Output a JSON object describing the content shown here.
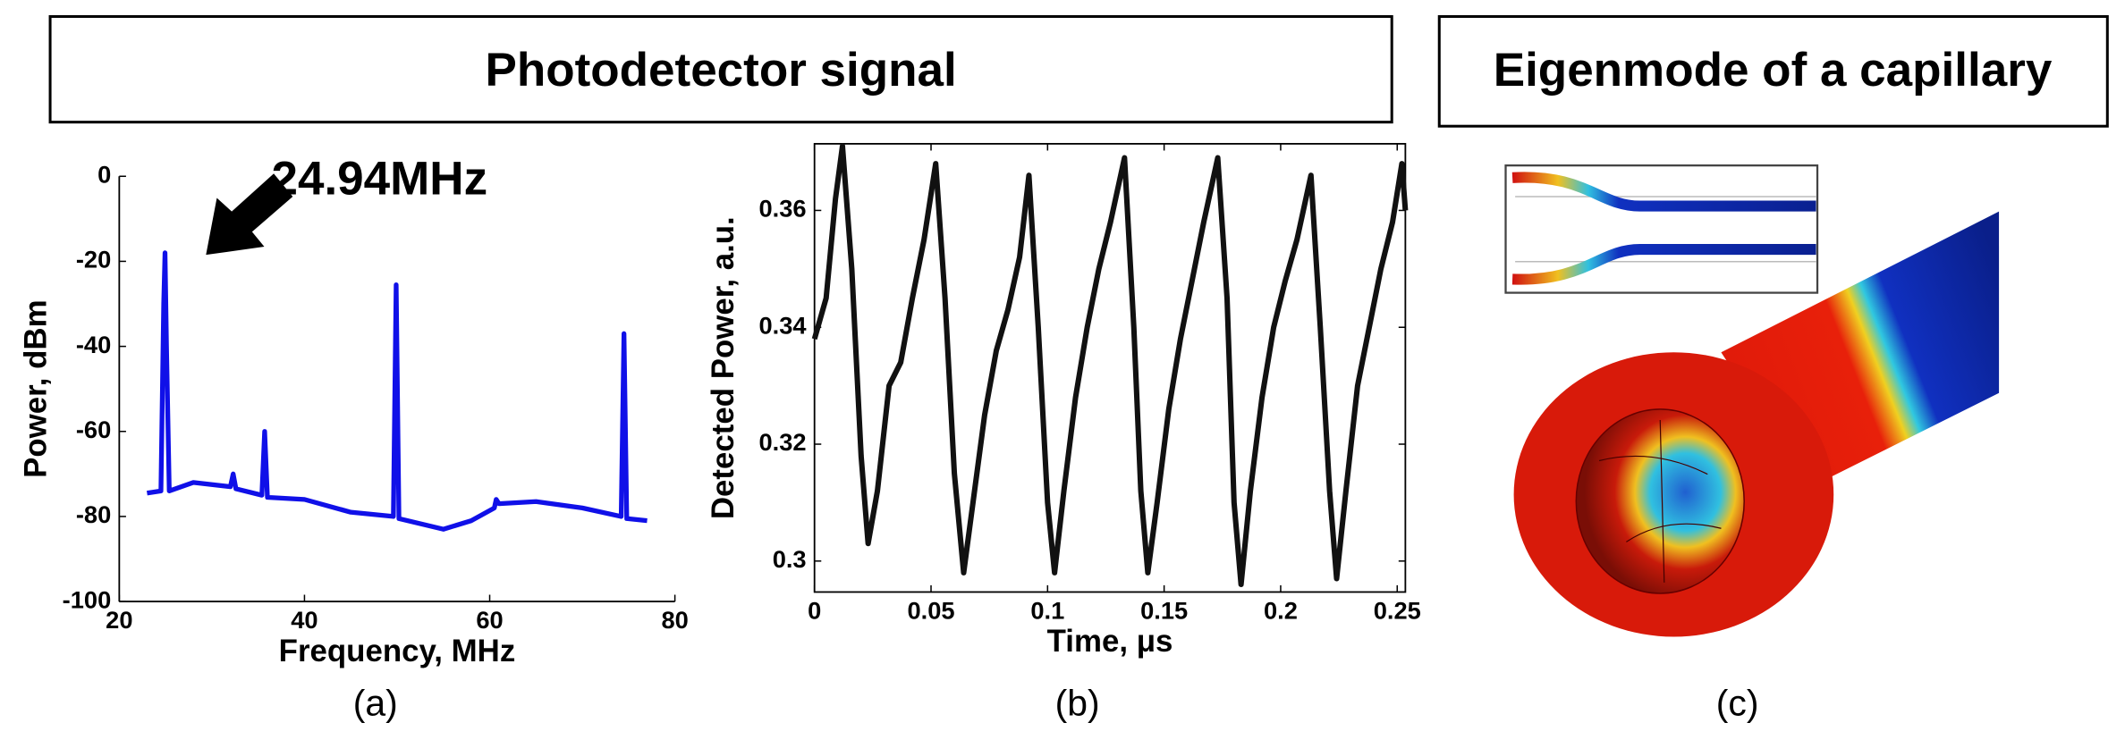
{
  "headers": [
    "Photodetector signal",
    "Eigenmode of a capillary"
  ],
  "panel_labels": [
    "(a)",
    "(b)",
    "(c)"
  ],
  "chart_data": [
    {
      "type": "line",
      "xlabel": "Frequency, MHz",
      "ylabel": "Power, dBm",
      "annotation": "24.94MHz",
      "color": "#1010e8",
      "x": [
        23,
        24.5,
        24.8,
        24.94,
        25.1,
        25.4,
        28,
        32,
        32.3,
        32.6,
        35.4,
        35.7,
        36.0,
        40,
        45,
        49.6,
        49.9,
        50.2,
        55,
        58,
        60.5,
        60.7,
        61,
        65,
        70,
        74.2,
        74.5,
        74.8,
        77
      ],
      "values": [
        -74.5,
        -74,
        -30,
        -18,
        -40,
        -74,
        -72,
        -73,
        -70,
        -73.5,
        -75,
        -60,
        -75.5,
        -76,
        -79,
        -80,
        -25.5,
        -80.5,
        -83,
        -81,
        -78,
        -76,
        -77,
        -76.5,
        -78,
        -80,
        -37,
        -80.5,
        -81
      ],
      "xlim": [
        20,
        80
      ],
      "ylim": [
        -100,
        0
      ],
      "xticks": [
        20,
        40,
        60,
        80
      ],
      "yticks": [
        0,
        -20,
        -40,
        -60,
        -80,
        -100
      ]
    },
    {
      "type": "line",
      "xlabel": "Time, μs",
      "ylabel": "Detected Power, a.u.",
      "color": "#111111",
      "x": [
        0,
        0.005,
        0.009,
        0.012,
        0.016,
        0.02,
        0.023,
        0.027,
        0.032,
        0.037,
        0.042,
        0.047,
        0.052,
        0.056,
        0.06,
        0.064,
        0.068,
        0.073,
        0.078,
        0.083,
        0.088,
        0.092,
        0.096,
        0.1,
        0.103,
        0.107,
        0.112,
        0.117,
        0.122,
        0.127,
        0.133,
        0.137,
        0.14,
        0.143,
        0.147,
        0.152,
        0.157,
        0.162,
        0.167,
        0.173,
        0.177,
        0.18,
        0.183,
        0.187,
        0.192,
        0.197,
        0.202,
        0.207,
        0.213,
        0.217,
        0.221,
        0.224,
        0.228,
        0.233,
        0.238,
        0.243,
        0.248,
        0.252,
        0.2535
      ],
      "values": [
        0.338,
        0.345,
        0.362,
        0.371,
        0.35,
        0.318,
        0.303,
        0.312,
        0.33,
        0.334,
        0.345,
        0.355,
        0.368,
        0.345,
        0.315,
        0.298,
        0.31,
        0.325,
        0.336,
        0.343,
        0.352,
        0.366,
        0.34,
        0.31,
        0.298,
        0.312,
        0.328,
        0.34,
        0.35,
        0.358,
        0.369,
        0.34,
        0.312,
        0.298,
        0.31,
        0.326,
        0.338,
        0.348,
        0.358,
        0.369,
        0.345,
        0.31,
        0.296,
        0.312,
        0.328,
        0.34,
        0.348,
        0.355,
        0.366,
        0.34,
        0.312,
        0.297,
        0.312,
        0.33,
        0.34,
        0.35,
        0.358,
        0.368,
        0.36
      ],
      "xlim": [
        0,
        0.2535
      ],
      "ylim": [
        0.2947,
        0.3714
      ],
      "xticks": [
        0,
        0.05,
        0.1,
        0.15,
        0.2,
        0.25
      ],
      "yticks": [
        0.3,
        0.32,
        0.34,
        0.36
      ]
    }
  ]
}
